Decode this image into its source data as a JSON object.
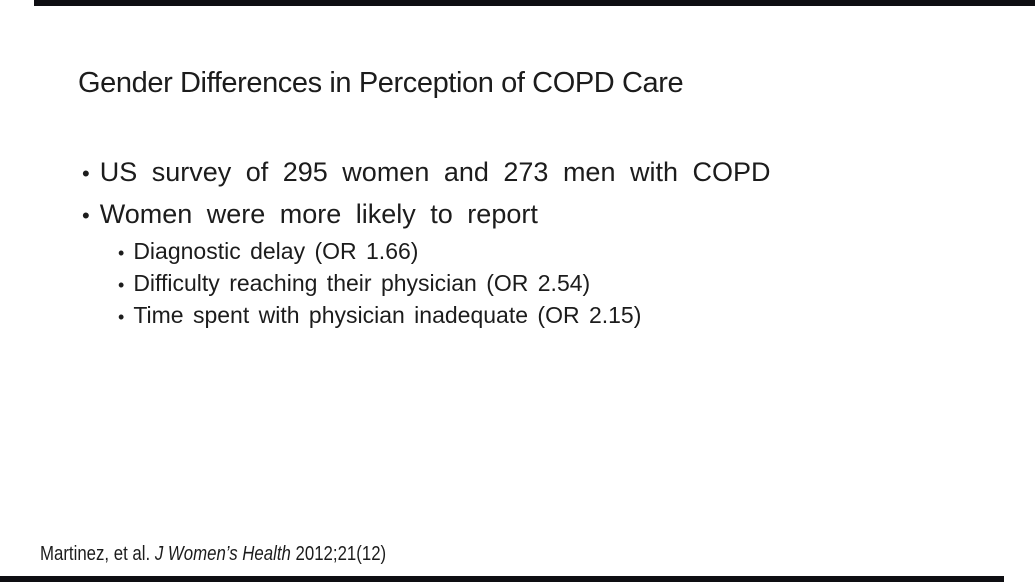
{
  "slide": {
    "title": "Gender Differences in Perception of COPD Care",
    "bullet_char": "•",
    "bullets": [
      {
        "label": "US survey of 295 women and 273 men with COPD"
      },
      {
        "label": "Women were more likely to report"
      }
    ],
    "sub_bullets": [
      {
        "label": "Diagnostic delay (OR 1.66)"
      },
      {
        "label": "Difficulty reaching their physician (OR 2.54)"
      },
      {
        "label": "Time spent with physician inadequate (OR 2.15)"
      }
    ],
    "citation": {
      "prefix": "Martinez, et al. ",
      "journal": "J Women’s Health",
      "suffix": " 2012;21(12)"
    },
    "colors": {
      "background": "#ffffff",
      "text": "#1c1c1c",
      "edge_bar": "#0e0e12"
    }
  }
}
